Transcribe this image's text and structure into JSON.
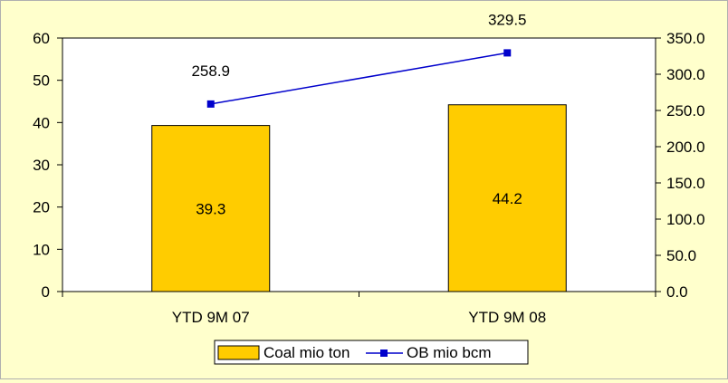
{
  "chart_data": {
    "type": "bar",
    "title": "",
    "categories": [
      "YTD 9M 07",
      "YTD 9M 08"
    ],
    "series": [
      {
        "name": "Coal mio ton",
        "type": "bar",
        "axis": "left",
        "values": [
          39.3,
          44.2
        ],
        "labels": [
          "39.3",
          "44.2"
        ],
        "color": "#ffcc00"
      },
      {
        "name": "OB mio bcm",
        "type": "line",
        "axis": "right",
        "values": [
          258.9,
          329.5
        ],
        "labels": [
          "258.9",
          "329.5"
        ],
        "color": "#0000cc"
      }
    ],
    "y_left": {
      "min": 0,
      "max": 60,
      "ticks": [
        "0",
        "10",
        "20",
        "30",
        "40",
        "50",
        "60"
      ]
    },
    "y_right": {
      "min": 0,
      "max": 350,
      "ticks": [
        "0.0",
        "50.0",
        "100.0",
        "150.0",
        "200.0",
        "250.0",
        "300.0",
        "350.0"
      ]
    },
    "grid": false,
    "legend": "bottom-center",
    "colors": {
      "background": "#ffffcc",
      "plot_area": "#ffffff",
      "bar_fill": "#ffcc00",
      "bar_stroke": "#000000",
      "line": "#0000cc"
    }
  }
}
